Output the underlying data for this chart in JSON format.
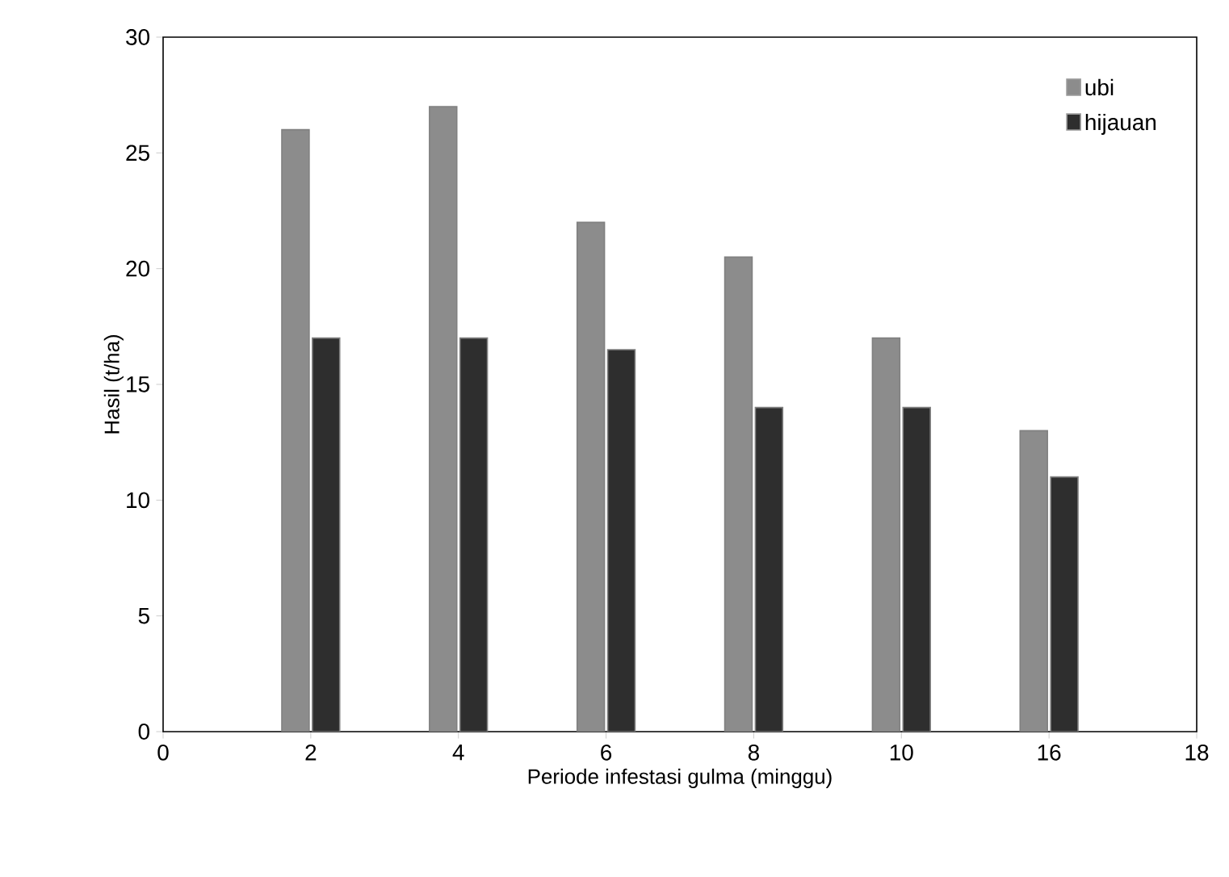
{
  "chart_data": {
    "type": "bar",
    "xlabel": "Periode infestasi gulma (minggu)",
    "ylabel": "Hasil (t/ha)",
    "categories": [
      "0",
      "2",
      "4",
      "6",
      "8",
      "10",
      "16",
      "18"
    ],
    "ylim": [
      0,
      30
    ],
    "yticks": [
      0,
      5,
      10,
      15,
      20,
      25,
      30
    ],
    "legend": "top right",
    "grid": false,
    "series": [
      {
        "name": "ubi",
        "color": "#8c8c8c",
        "values": [
          null,
          26,
          27,
          22,
          20.5,
          17,
          13,
          null
        ]
      },
      {
        "name": "hijauan",
        "color": "#2e2e2e",
        "values": [
          null,
          17,
          17,
          16.5,
          14,
          14,
          11,
          null
        ]
      }
    ]
  }
}
